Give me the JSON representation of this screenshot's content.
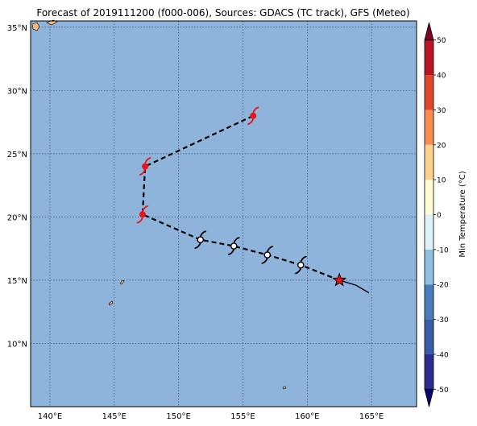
{
  "chart_data": {
    "type": "map",
    "title": "Forecast of 2019111200 (f000-006), Sources: GDACS (TC track), GFS (Meteo)",
    "map_extent": {
      "lon": [
        138.5,
        168.5
      ],
      "lat": [
        5.0,
        35.5
      ]
    },
    "x_ticks": [
      {
        "value": 140,
        "label": "140°E"
      },
      {
        "value": 145,
        "label": "145°E"
      },
      {
        "value": 150,
        "label": "150°E"
      },
      {
        "value": 155,
        "label": "155°E"
      },
      {
        "value": 160,
        "label": "160°E"
      },
      {
        "value": 165,
        "label": "165°E"
      }
    ],
    "y_ticks": [
      {
        "value": 10,
        "label": "10°N"
      },
      {
        "value": 15,
        "label": "15°N"
      },
      {
        "value": 20,
        "label": "20°N"
      },
      {
        "value": 25,
        "label": "25°N"
      },
      {
        "value": 30,
        "label": "30°N"
      },
      {
        "value": 35,
        "label": "35°N"
      }
    ],
    "grid": true,
    "ocean_color": "#8fb4dc",
    "land_color": "#f5b878",
    "past_track": [
      {
        "lon": 164.8,
        "lat": 14.0
      },
      {
        "lon": 163.8,
        "lat": 14.6
      },
      {
        "lon": 162.5,
        "lat": 15.0
      }
    ],
    "current_position": {
      "lon": 162.5,
      "lat": 15.0,
      "marker_color": "#e8141a"
    },
    "forecast_track": [
      {
        "lon": 162.5,
        "lat": 15.0,
        "category": "tropical-depression"
      },
      {
        "lon": 159.5,
        "lat": 16.2,
        "category": "tropical-depression"
      },
      {
        "lon": 156.9,
        "lat": 17.0,
        "category": "tropical-depression"
      },
      {
        "lon": 154.3,
        "lat": 17.7,
        "category": "tropical-depression"
      },
      {
        "lon": 151.7,
        "lat": 18.2,
        "category": "tropical-depression"
      },
      {
        "lon": 147.2,
        "lat": 20.2,
        "category": "tropical-storm"
      },
      {
        "lon": 147.4,
        "lat": 24.0,
        "category": "tropical-storm"
      },
      {
        "lon": 155.8,
        "lat": 28.0,
        "category": "tropical-storm"
      }
    ],
    "category_colors": {
      "tropical-depression": "#000000",
      "tropical-storm": "#e8141a"
    },
    "colorbar": {
      "label": "Min Temperature (°C)",
      "min": -55,
      "max": 55,
      "ticks": [
        -50,
        -40,
        -30,
        -20,
        -10,
        0,
        10,
        20,
        30,
        40,
        50
      ],
      "bins": [
        {
          "from": -55,
          "to": -50,
          "color": "#08086e"
        },
        {
          "from": -50,
          "to": -40,
          "color": "#2b2c8e"
        },
        {
          "from": -40,
          "to": -30,
          "color": "#3a5ca8"
        },
        {
          "from": -30,
          "to": -20,
          "color": "#4a7cbb"
        },
        {
          "from": -20,
          "to": -10,
          "color": "#8ebfdc"
        },
        {
          "from": -10,
          "to": 0,
          "color": "#ddf1f8"
        },
        {
          "from": 0,
          "to": 10,
          "color": "#fffcd4"
        },
        {
          "from": 10,
          "to": 20,
          "color": "#fdd08b"
        },
        {
          "from": 20,
          "to": 30,
          "color": "#f88d52"
        },
        {
          "from": 30,
          "to": 40,
          "color": "#e1462d"
        },
        {
          "from": 40,
          "to": 50,
          "color": "#b81426"
        },
        {
          "from": 50,
          "to": 55,
          "color": "#800026"
        }
      ]
    }
  }
}
